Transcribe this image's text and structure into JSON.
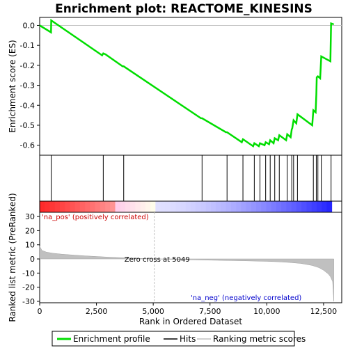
{
  "chart_data": {
    "type": "line",
    "title": "Enrichment plot: REACTOME_KINESINS",
    "colors": {
      "enrichment": "#00dd00",
      "hits": "#000000",
      "metric_fill": "#c0c0c0",
      "zero_line": "#c0c0c0",
      "pos_text": "#cc0000",
      "neg_text": "#0000cc",
      "heat_pos": "#ff0000",
      "heat_neg": "#0000ff"
    },
    "x_axis": {
      "label": "Rank in Ordered Dataset",
      "range": [
        0,
        13300
      ],
      "ticks": [
        0,
        2500,
        5000,
        7500,
        10000,
        12500
      ],
      "tick_labels": [
        "0",
        "2,500",
        "5,000",
        "7,500",
        "10,000",
        "12,500"
      ]
    },
    "es_panel": {
      "ylabel": "Enrichment score (ES)",
      "ylim": [
        -0.65,
        0.04
      ],
      "yticks": [
        0.0,
        -0.1,
        -0.2,
        -0.3,
        -0.4,
        -0.5,
        -0.6
      ],
      "ytick_labels": [
        "0.0",
        "-0.1",
        "-0.2",
        "-0.3",
        "-0.4",
        "-0.5",
        "-0.6"
      ],
      "series": [
        {
          "name": "Enrichment profile",
          "x": [
            0,
            500,
            510,
            2750,
            2800,
            2900,
            3650,
            3700,
            7100,
            7150,
            8200,
            8250,
            8900,
            8950,
            9400,
            9450,
            9650,
            9700,
            9900,
            9950,
            10100,
            10150,
            10300,
            10350,
            10500,
            10550,
            10850,
            10900,
            11050,
            11100,
            11120,
            11180,
            11300,
            11350,
            12000,
            12050,
            12150,
            12180,
            12200,
            12250,
            12350,
            12400,
            12800,
            12830,
            12950
          ],
          "y": [
            0.0,
            -0.035,
            0.025,
            -0.15,
            -0.14,
            -0.145,
            -0.205,
            -0.205,
            -0.465,
            -0.465,
            -0.535,
            -0.535,
            -0.585,
            -0.57,
            -0.605,
            -0.59,
            -0.605,
            -0.59,
            -0.6,
            -0.585,
            -0.595,
            -0.575,
            -0.59,
            -0.565,
            -0.575,
            -0.55,
            -0.575,
            -0.545,
            -0.56,
            -0.52,
            -0.515,
            -0.475,
            -0.49,
            -0.445,
            -0.5,
            -0.425,
            -0.435,
            -0.345,
            -0.26,
            -0.255,
            -0.265,
            -0.155,
            -0.18,
            0.01,
            0.005
          ]
        }
      ]
    },
    "hits": [
      510,
      2800,
      3700,
      7150,
      8250,
      8950,
      9450,
      9700,
      9950,
      10150,
      10350,
      10550,
      10900,
      11100,
      11180,
      11350,
      12050,
      12180,
      12250,
      12400,
      12830
    ],
    "metric_panel": {
      "ylabel": "Ranked list metric (PreRanked)",
      "ylim": [
        -31,
        33
      ],
      "yticks": [
        30,
        20,
        10,
        0,
        -10,
        -20,
        -30
      ],
      "ytick_labels": [
        "30",
        "20",
        "10",
        "0",
        "-10",
        "-20",
        "-30"
      ],
      "series": [
        {
          "name": "Ranking metric scores",
          "x": [
            0,
            100,
            300,
            600,
            1000,
            2000,
            3000,
            4000,
            5049,
            6000,
            7000,
            8000,
            9000,
            10000,
            10500,
            11000,
            11500,
            12000,
            12300,
            12500,
            12700,
            12800,
            12900,
            12950
          ],
          "y": [
            9,
            6,
            4.8,
            4,
            3.3,
            2.2,
            1.3,
            0.6,
            0,
            -0.4,
            -0.7,
            -1.0,
            -1.3,
            -1.7,
            -2.0,
            -2.5,
            -3.2,
            -4.6,
            -6.2,
            -8.0,
            -10.5,
            -12.5,
            -16,
            -30
          ]
        }
      ],
      "zero_cross_label": "Zero cross at 5049",
      "zero_cross_x": 5049,
      "pos_label": "'na_pos' (positively correlated)",
      "neg_label": "'na_neg' (negatively correlated)"
    },
    "legend": [
      {
        "label": "Enrichment profile",
        "marker": "line",
        "color": "#00dd00"
      },
      {
        "label": "Hits",
        "marker": "line",
        "color": "#000000"
      },
      {
        "label": "Ranking metric scores",
        "marker": "line",
        "color": "#c0c0c0"
      }
    ]
  }
}
